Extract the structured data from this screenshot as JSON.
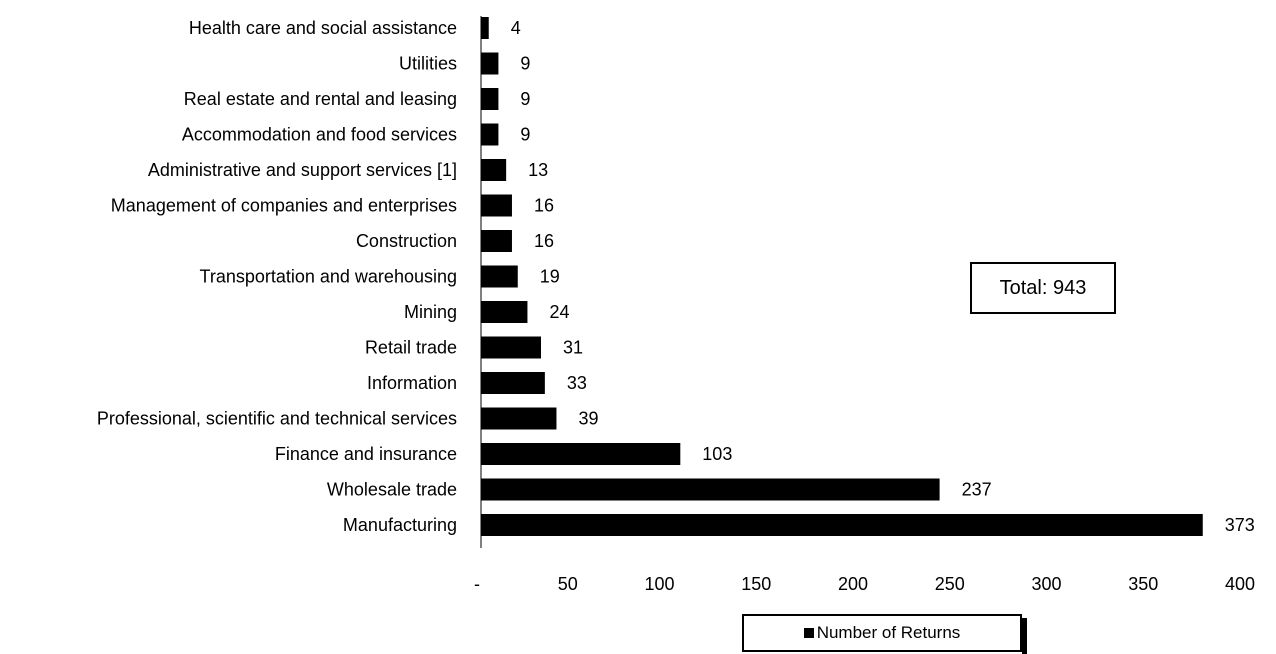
{
  "chart_data": {
    "type": "bar",
    "orientation": "horizontal",
    "categories": [
      "Health care and social assistance",
      "Utilities",
      "Real estate and rental and leasing",
      "Accommodation and food services",
      "Administrative and support services [1]",
      "Management of companies and enterprises",
      "Construction",
      "Transportation and warehousing",
      "Mining",
      "Retail trade",
      "Information",
      "Professional, scientific and technical services",
      "Finance and insurance",
      "Wholesale trade",
      "Manufacturing"
    ],
    "series": [
      {
        "name": "Number of Returns",
        "values": [
          4,
          9,
          9,
          9,
          13,
          16,
          16,
          19,
          24,
          31,
          33,
          39,
          103,
          237,
          373
        ],
        "color": "#000000"
      }
    ],
    "xlim": [
      0,
      400
    ],
    "x_ticks": [
      "-",
      "50",
      "100",
      "150",
      "200",
      "250",
      "300",
      "350",
      "400"
    ],
    "grid": false,
    "legend_position": "bottom",
    "annotation": "Total: 943"
  }
}
